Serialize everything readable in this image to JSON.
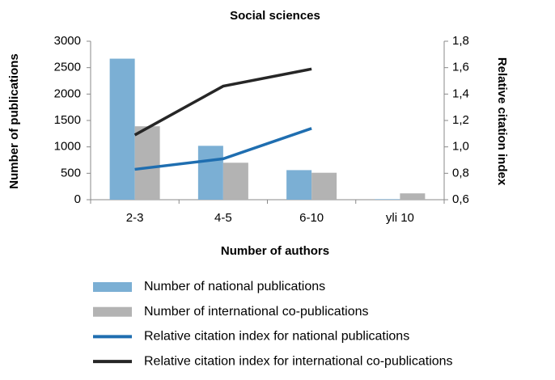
{
  "chart_data": {
    "type": "bar",
    "title": "Social sciences",
    "x_label": "Number of authors",
    "y_label": "Number of publications",
    "y2_label": "Relative citation index",
    "categories": [
      "2-3",
      "4-5",
      "6-10",
      "yli 10"
    ],
    "series": [
      {
        "name": "Number of national publications",
        "type": "bar",
        "color": "#7bafd4",
        "values": [
          2670,
          1020,
          560,
          10
        ]
      },
      {
        "name": "Number of international co-publications",
        "type": "bar",
        "color": "#b3b3b3",
        "values": [
          1390,
          700,
          510,
          120
        ]
      },
      {
        "name": "Relative citation index for national publications",
        "type": "line",
        "axis": "y2",
        "color": "#1f6eb0",
        "values": [
          0.83,
          0.91,
          1.14,
          null
        ]
      },
      {
        "name": "Relative citation index for international co-publications",
        "type": "line",
        "axis": "y2",
        "color": "#262626",
        "values": [
          1.09,
          1.46,
          1.59,
          null
        ]
      }
    ],
    "ylim": [
      0,
      3000
    ],
    "yticks": [
      0,
      500,
      1000,
      1500,
      2000,
      2500,
      3000
    ],
    "y2lim": [
      0.6,
      1.8
    ],
    "y2ticks": [
      {
        "value": 0.6,
        "label": "0,6"
      },
      {
        "value": 0.8,
        "label": "0,8"
      },
      {
        "value": 1.0,
        "label": "1,0"
      },
      {
        "value": 1.2,
        "label": "1,2"
      },
      {
        "value": 1.4,
        "label": "1,4"
      },
      {
        "value": 1.6,
        "label": "1,6"
      },
      {
        "value": 1.8,
        "label": "1,8"
      }
    ],
    "grid": false
  }
}
